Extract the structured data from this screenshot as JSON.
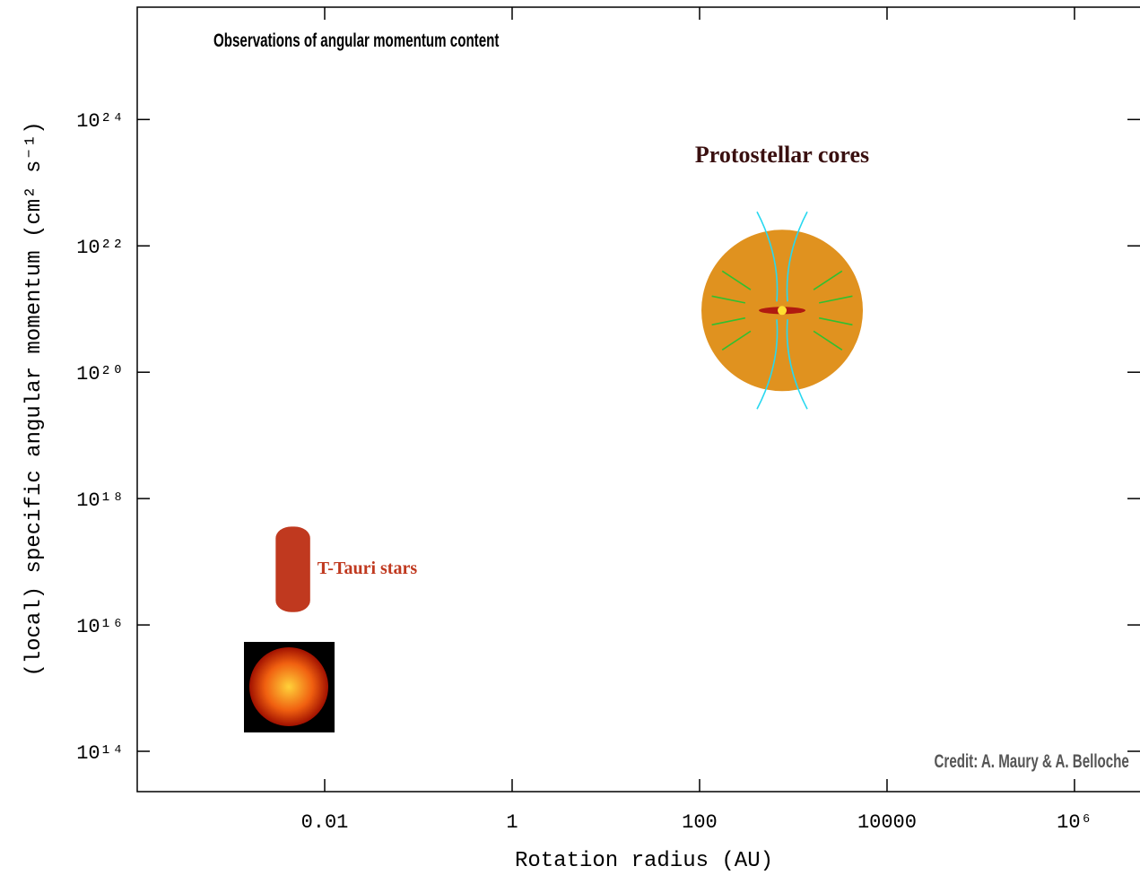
{
  "chart_data": {
    "type": "region",
    "title": "Observations of angular momentum content",
    "xlabel": "Rotation radius (AU)",
    "ylabel": "(local) specific angular momentum (cm² s⁻¹)",
    "credit": "Credit: A. Maury & A. Belloche",
    "xscale": "log",
    "yscale": "log",
    "xlim": [
      0.0001,
      5000000
    ],
    "ylim": [
      23000000000000.0,
      6e+25
    ],
    "xticks": [
      0.01,
      1,
      100,
      10000,
      {
        "value": 1000000,
        "label": "10⁶"
      }
    ],
    "yticks": [
      {
        "value": 100000000000000.0,
        "label": "10¹⁴"
      },
      {
        "value": 1e+16,
        "label": "10¹⁶"
      },
      {
        "value": 1e+18,
        "label": "10¹⁸"
      },
      {
        "value": 1e+20,
        "label": "10²⁰"
      },
      {
        "value": 1e+22,
        "label": "10²²"
      },
      {
        "value": 1e+24,
        "label": "10²⁴"
      }
    ],
    "series": [
      {
        "name": "T-Tauri stars",
        "color": "#c0391f",
        "x": [
          0.003,
          0.007
        ],
        "y": [
          1.6e+16,
          3.6e+17
        ]
      },
      {
        "name": "Protostellar cores",
        "color": "#e0921f",
        "x": [
          760
        ],
        "y": [
          9.5e+20
        ]
      }
    ]
  }
}
